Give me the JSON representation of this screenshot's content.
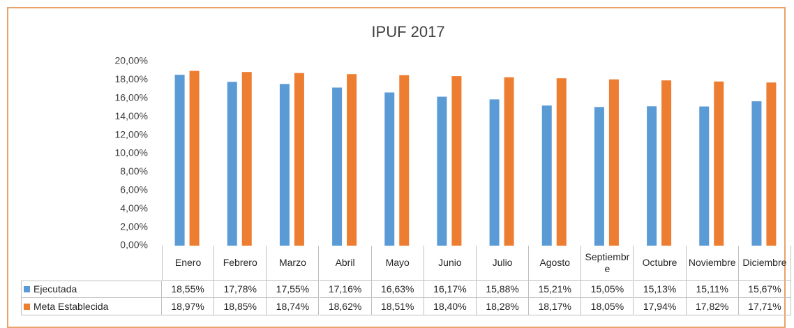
{
  "chart_data": {
    "type": "bar",
    "title": "IPUF 2017",
    "categories": [
      "Enero",
      "Febrero",
      "Marzo",
      "Abril",
      "Mayo",
      "Junio",
      "Julio",
      "Agosto",
      "Septiembre",
      "Octubre",
      "Noviembre",
      "Diciembre"
    ],
    "series": [
      {
        "name": "Ejecutada",
        "color": "#5b9bd5",
        "values": [
          18.55,
          17.78,
          17.55,
          17.16,
          16.63,
          16.17,
          15.88,
          15.21,
          15.05,
          15.13,
          15.11,
          15.67
        ],
        "value_labels": [
          "18,55%",
          "17,78%",
          "17,55%",
          "17,16%",
          "16,63%",
          "16,17%",
          "15,88%",
          "15,21%",
          "15,05%",
          "15,13%",
          "15,11%",
          "15,67%"
        ]
      },
      {
        "name": "Meta Establecida",
        "color": "#ed7d31",
        "values": [
          18.97,
          18.85,
          18.74,
          18.62,
          18.51,
          18.4,
          18.28,
          18.17,
          18.05,
          17.94,
          17.82,
          17.71
        ],
        "value_labels": [
          "18,97%",
          "18,85%",
          "18,74%",
          "18,62%",
          "18,51%",
          "18,40%",
          "18,28%",
          "18,17%",
          "18,05%",
          "17,94%",
          "17,82%",
          "17,71%"
        ]
      }
    ],
    "ylim": [
      0,
      20
    ],
    "yticks": [
      {
        "value": 0,
        "label": "0,00%"
      },
      {
        "value": 2,
        "label": "2,00%"
      },
      {
        "value": 4,
        "label": "4,00%"
      },
      {
        "value": 6,
        "label": "6,00%"
      },
      {
        "value": 8,
        "label": "8,00%"
      },
      {
        "value": 10,
        "label": "10,00%"
      },
      {
        "value": 12,
        "label": "12,00%"
      },
      {
        "value": 14,
        "label": "14,00%"
      },
      {
        "value": 16,
        "label": "16,00%"
      },
      {
        "value": 18,
        "label": "18,00%"
      },
      {
        "value": 20,
        "label": "20,00%"
      }
    ],
    "grid": false
  }
}
